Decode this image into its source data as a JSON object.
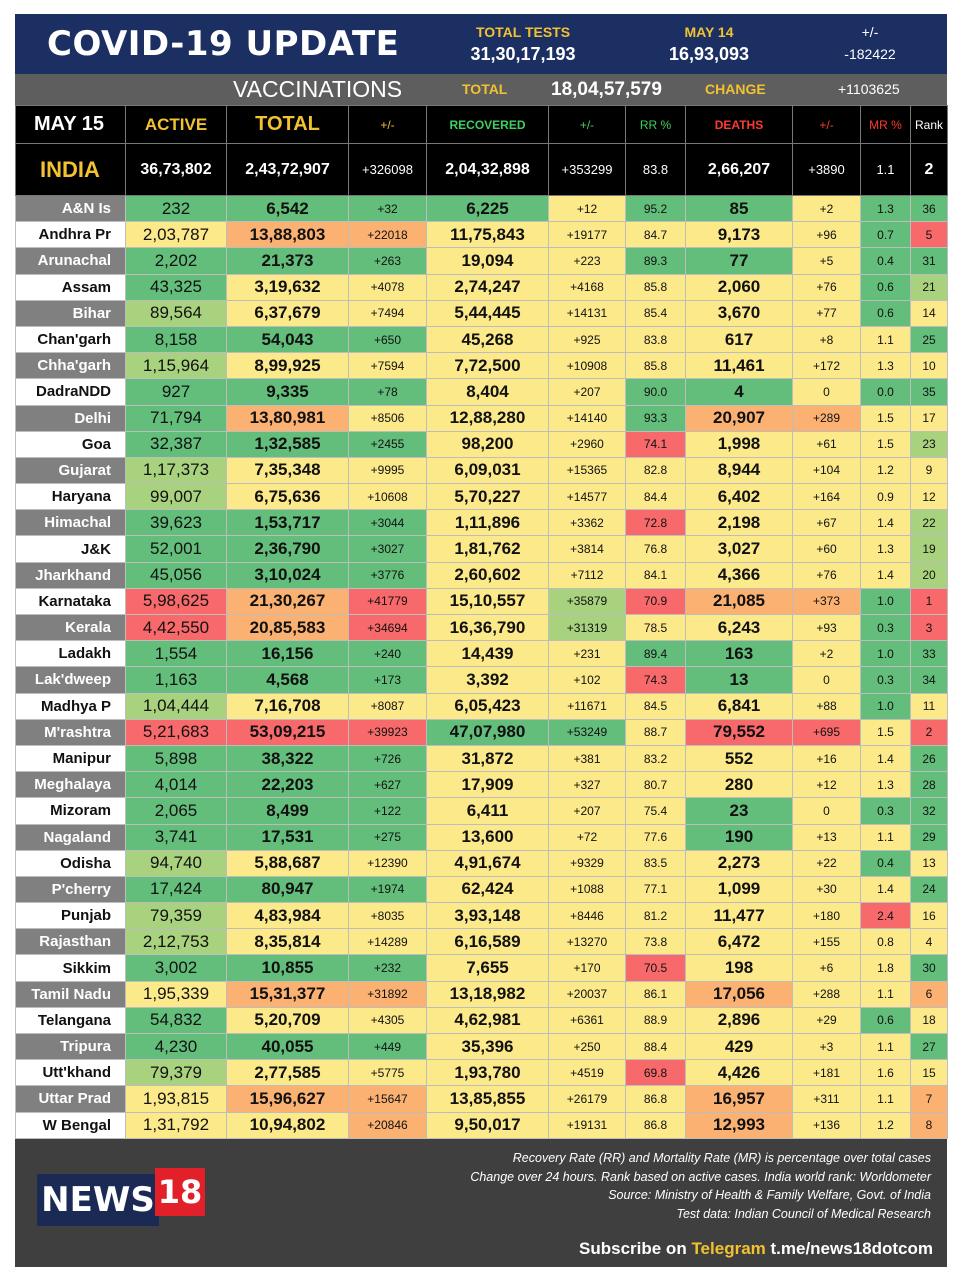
{
  "header": {
    "title": "COVID-19 UPDATE",
    "total_tests_label": "TOTAL TESTS",
    "total_tests_value": "31,30,17,193",
    "may14_label": "MAY 14",
    "may14_value": "16,93,093",
    "change_label": "+/-",
    "change_value": "-182422"
  },
  "vaccinations": {
    "title": "VACCINATIONS",
    "total_label": "TOTAL",
    "total_value": "18,04,57,579",
    "change_label": "CHANGE",
    "change_value": "+1103625"
  },
  "columns": {
    "date": "MAY 15",
    "active": "ACTIVE",
    "total": "TOTAL",
    "total_change": "+/-",
    "recovered": "RECOVERED",
    "recovered_change": "+/-",
    "rr": "RR %",
    "deaths": "DEATHS",
    "deaths_change": "+/-",
    "mr": "MR %",
    "rank": "Rank"
  },
  "india": {
    "name": "INDIA",
    "active": "36,73,802",
    "total": "2,43,72,907",
    "total_change": "+326098",
    "recovered": "2,04,32,898",
    "recovered_change": "+353299",
    "rr": "83.8",
    "deaths": "2,66,207",
    "deaths_change": "+3890",
    "mr": "1.1",
    "rank": "2"
  },
  "colors": {
    "green": "#63be7b",
    "light_green": "#a9d27f",
    "yellow": "#fce98a",
    "orange": "#fbb172",
    "red": "#f8696b",
    "header_navy": "#1c2f63",
    "accent_yellow": "#f2c230"
  },
  "states": [
    [
      "A&N Is",
      "232",
      "6,542",
      "+32",
      "6,225",
      "+12",
      "95.2",
      "85",
      "+2",
      "1.3",
      "36"
    ],
    [
      "Andhra Pr",
      "2,03,787",
      "13,88,803",
      "+22018",
      "11,75,843",
      "+19177",
      "84.7",
      "9,173",
      "+96",
      "0.7",
      "5"
    ],
    [
      "Arunachal",
      "2,202",
      "21,373",
      "+263",
      "19,094",
      "+223",
      "89.3",
      "77",
      "+5",
      "0.4",
      "31"
    ],
    [
      "Assam",
      "43,325",
      "3,19,632",
      "+4078",
      "2,74,247",
      "+4168",
      "85.8",
      "2,060",
      "+76",
      "0.6",
      "21"
    ],
    [
      "Bihar",
      "89,564",
      "6,37,679",
      "+7494",
      "5,44,445",
      "+14131",
      "85.4",
      "3,670",
      "+77",
      "0.6",
      "14"
    ],
    [
      "Chan'garh",
      "8,158",
      "54,043",
      "+650",
      "45,268",
      "+925",
      "83.8",
      "617",
      "+8",
      "1.1",
      "25"
    ],
    [
      "Chha'garh",
      "1,15,964",
      "8,99,925",
      "+7594",
      "7,72,500",
      "+10908",
      "85.8",
      "11,461",
      "+172",
      "1.3",
      "10"
    ],
    [
      "DadraNDD",
      "927",
      "9,335",
      "+78",
      "8,404",
      "+207",
      "90.0",
      "4",
      "0",
      "0.0",
      "35"
    ],
    [
      "Delhi",
      "71,794",
      "13,80,981",
      "+8506",
      "12,88,280",
      "+14140",
      "93.3",
      "20,907",
      "+289",
      "1.5",
      "17"
    ],
    [
      "Goa",
      "32,387",
      "1,32,585",
      "+2455",
      "98,200",
      "+2960",
      "74.1",
      "1,998",
      "+61",
      "1.5",
      "23"
    ],
    [
      "Gujarat",
      "1,17,373",
      "7,35,348",
      "+9995",
      "6,09,031",
      "+15365",
      "82.8",
      "8,944",
      "+104",
      "1.2",
      "9"
    ],
    [
      "Haryana",
      "99,007",
      "6,75,636",
      "+10608",
      "5,70,227",
      "+14577",
      "84.4",
      "6,402",
      "+164",
      "0.9",
      "12"
    ],
    [
      "Himachal",
      "39,623",
      "1,53,717",
      "+3044",
      "1,11,896",
      "+3362",
      "72.8",
      "2,198",
      "+67",
      "1.4",
      "22"
    ],
    [
      "J&K",
      "52,001",
      "2,36,790",
      "+3027",
      "1,81,762",
      "+3814",
      "76.8",
      "3,027",
      "+60",
      "1.3",
      "19"
    ],
    [
      "Jharkhand",
      "45,056",
      "3,10,024",
      "+3776",
      "2,60,602",
      "+7112",
      "84.1",
      "4,366",
      "+76",
      "1.4",
      "20"
    ],
    [
      "Karnataka",
      "5,98,625",
      "21,30,267",
      "+41779",
      "15,10,557",
      "+35879",
      "70.9",
      "21,085",
      "+373",
      "1.0",
      "1"
    ],
    [
      "Kerala",
      "4,42,550",
      "20,85,583",
      "+34694",
      "16,36,790",
      "+31319",
      "78.5",
      "6,243",
      "+93",
      "0.3",
      "3"
    ],
    [
      "Ladakh",
      "1,554",
      "16,156",
      "+240",
      "14,439",
      "+231",
      "89.4",
      "163",
      "+2",
      "1.0",
      "33"
    ],
    [
      "Lak'dweep",
      "1,163",
      "4,568",
      "+173",
      "3,392",
      "+102",
      "74.3",
      "13",
      "0",
      "0.3",
      "34"
    ],
    [
      "Madhya P",
      "1,04,444",
      "7,16,708",
      "+8087",
      "6,05,423",
      "+11671",
      "84.5",
      "6,841",
      "+88",
      "1.0",
      "11"
    ],
    [
      "M'rashtra",
      "5,21,683",
      "53,09,215",
      "+39923",
      "47,07,980",
      "+53249",
      "88.7",
      "79,552",
      "+695",
      "1.5",
      "2"
    ],
    [
      "Manipur",
      "5,898",
      "38,322",
      "+726",
      "31,872",
      "+381",
      "83.2",
      "552",
      "+16",
      "1.4",
      "26"
    ],
    [
      "Meghalaya",
      "4,014",
      "22,203",
      "+627",
      "17,909",
      "+327",
      "80.7",
      "280",
      "+12",
      "1.3",
      "28"
    ],
    [
      "Mizoram",
      "2,065",
      "8,499",
      "+122",
      "6,411",
      "+207",
      "75.4",
      "23",
      "0",
      "0.3",
      "32"
    ],
    [
      "Nagaland",
      "3,741",
      "17,531",
      "+275",
      "13,600",
      "+72",
      "77.6",
      "190",
      "+13",
      "1.1",
      "29"
    ],
    [
      "Odisha",
      "94,740",
      "5,88,687",
      "+12390",
      "4,91,674",
      "+9329",
      "83.5",
      "2,273",
      "+22",
      "0.4",
      "13"
    ],
    [
      "P'cherry",
      "17,424",
      "80,947",
      "+1974",
      "62,424",
      "+1088",
      "77.1",
      "1,099",
      "+30",
      "1.4",
      "24"
    ],
    [
      "Punjab",
      "79,359",
      "4,83,984",
      "+8035",
      "3,93,148",
      "+8446",
      "81.2",
      "11,477",
      "+180",
      "2.4",
      "16"
    ],
    [
      "Rajasthan",
      "2,12,753",
      "8,35,814",
      "+14289",
      "6,16,589",
      "+13270",
      "73.8",
      "6,472",
      "+155",
      "0.8",
      "4"
    ],
    [
      "Sikkim",
      "3,002",
      "10,855",
      "+232",
      "7,655",
      "+170",
      "70.5",
      "198",
      "+6",
      "1.8",
      "30"
    ],
    [
      "Tamil Nadu",
      "1,95,339",
      "15,31,377",
      "+31892",
      "13,18,982",
      "+20037",
      "86.1",
      "17,056",
      "+288",
      "1.1",
      "6"
    ],
    [
      "Telangana",
      "54,832",
      "5,20,709",
      "+4305",
      "4,62,981",
      "+6361",
      "88.9",
      "2,896",
      "+29",
      "0.6",
      "18"
    ],
    [
      "Tripura",
      "4,230",
      "40,055",
      "+449",
      "35,396",
      "+250",
      "88.4",
      "429",
      "+3",
      "1.1",
      "27"
    ],
    [
      "Utt'khand",
      "79,379",
      "2,77,585",
      "+5775",
      "1,93,780",
      "+4519",
      "69.8",
      "4,426",
      "+181",
      "1.6",
      "15"
    ],
    [
      "Uttar Prad",
      "1,93,815",
      "15,96,627",
      "+15647",
      "13,85,855",
      "+26179",
      "86.8",
      "16,957",
      "+311",
      "1.1",
      "7"
    ],
    [
      "W Bengal",
      "1,31,792",
      "10,94,802",
      "+20846",
      "9,50,017",
      "+19131",
      "86.8",
      "12,993",
      "+136",
      "1.2",
      "8"
    ]
  ],
  "shades": [
    [
      "g",
      "g",
      "g",
      "g",
      "y",
      "g",
      "g",
      "y",
      "g",
      "g"
    ],
    [
      "y",
      "o",
      "o",
      "y",
      "y",
      "y",
      "y",
      "y",
      "g",
      "r"
    ],
    [
      "g",
      "g",
      "g",
      "y",
      "y",
      "g",
      "g",
      "y",
      "g",
      "g"
    ],
    [
      "g",
      "y",
      "y",
      "y",
      "y",
      "y",
      "y",
      "y",
      "g",
      "l"
    ],
    [
      "l",
      "y",
      "y",
      "y",
      "y",
      "y",
      "y",
      "y",
      "g",
      "y"
    ],
    [
      "g",
      "g",
      "g",
      "y",
      "y",
      "y",
      "y",
      "y",
      "y",
      "g"
    ],
    [
      "l",
      "y",
      "y",
      "y",
      "y",
      "y",
      "y",
      "y",
      "y",
      "y"
    ],
    [
      "g",
      "g",
      "g",
      "y",
      "y",
      "g",
      "g",
      "y",
      "g",
      "g"
    ],
    [
      "g",
      "o",
      "y",
      "y",
      "y",
      "g",
      "o",
      "o",
      "y",
      "y"
    ],
    [
      "g",
      "g",
      "g",
      "y",
      "y",
      "r",
      "y",
      "y",
      "y",
      "l"
    ],
    [
      "l",
      "y",
      "y",
      "y",
      "y",
      "y",
      "y",
      "y",
      "y",
      "y"
    ],
    [
      "l",
      "y",
      "y",
      "y",
      "y",
      "y",
      "y",
      "y",
      "y",
      "y"
    ],
    [
      "g",
      "g",
      "g",
      "y",
      "y",
      "r",
      "y",
      "y",
      "y",
      "l"
    ],
    [
      "g",
      "g",
      "g",
      "y",
      "y",
      "y",
      "y",
      "y",
      "y",
      "l"
    ],
    [
      "g",
      "g",
      "g",
      "y",
      "y",
      "y",
      "y",
      "y",
      "y",
      "l"
    ],
    [
      "r",
      "o",
      "r",
      "y",
      "l",
      "r",
      "o",
      "o",
      "g",
      "r"
    ],
    [
      "r",
      "o",
      "r",
      "y",
      "l",
      "y",
      "y",
      "y",
      "g",
      "r"
    ],
    [
      "g",
      "g",
      "g",
      "y",
      "y",
      "g",
      "g",
      "y",
      "g",
      "g"
    ],
    [
      "g",
      "g",
      "g",
      "y",
      "y",
      "r",
      "g",
      "y",
      "g",
      "g"
    ],
    [
      "l",
      "y",
      "y",
      "y",
      "y",
      "y",
      "y",
      "y",
      "g",
      "y"
    ],
    [
      "r",
      "r",
      "r",
      "g",
      "g",
      "y",
      "r",
      "r",
      "y",
      "r"
    ],
    [
      "g",
      "g",
      "g",
      "y",
      "y",
      "y",
      "y",
      "y",
      "y",
      "g"
    ],
    [
      "g",
      "g",
      "g",
      "y",
      "y",
      "y",
      "y",
      "y",
      "y",
      "g"
    ],
    [
      "g",
      "g",
      "g",
      "y",
      "y",
      "y",
      "g",
      "y",
      "g",
      "g"
    ],
    [
      "g",
      "g",
      "g",
      "y",
      "y",
      "y",
      "g",
      "y",
      "y",
      "g"
    ],
    [
      "l",
      "y",
      "y",
      "y",
      "y",
      "y",
      "y",
      "y",
      "g",
      "y"
    ],
    [
      "g",
      "g",
      "g",
      "y",
      "y",
      "y",
      "y",
      "y",
      "y",
      "g"
    ],
    [
      "l",
      "y",
      "y",
      "y",
      "y",
      "y",
      "y",
      "y",
      "r",
      "y"
    ],
    [
      "l",
      "y",
      "y",
      "y",
      "y",
      "y",
      "y",
      "y",
      "y",
      "y"
    ],
    [
      "g",
      "g",
      "g",
      "y",
      "y",
      "r",
      "y",
      "y",
      "y",
      "g"
    ],
    [
      "y",
      "o",
      "o",
      "y",
      "y",
      "y",
      "o",
      "y",
      "y",
      "o"
    ],
    [
      "g",
      "y",
      "y",
      "y",
      "y",
      "y",
      "y",
      "y",
      "g",
      "y"
    ],
    [
      "g",
      "g",
      "g",
      "y",
      "y",
      "y",
      "y",
      "y",
      "y",
      "g"
    ],
    [
      "l",
      "y",
      "y",
      "y",
      "y",
      "r",
      "y",
      "y",
      "y",
      "y"
    ],
    [
      "y",
      "o",
      "o",
      "y",
      "y",
      "y",
      "o",
      "y",
      "y",
      "o"
    ],
    [
      "y",
      "y",
      "o",
      "y",
      "y",
      "y",
      "o",
      "y",
      "y",
      "o"
    ]
  ],
  "footer": {
    "logo_text": "NEWS",
    "logo_number": "18",
    "note1": "Recovery Rate (RR) and Mortality Rate (MR) is percentage over total cases",
    "note2": "Change over 24 hours. Rank based on active cases. India world rank: Worldometer",
    "note3": "Source: Ministry of Health & Family Welfare, Govt. of India",
    "note4": "Test data: Indian Council of Medical Research",
    "subscribe_text": "Subscribe on",
    "telegram_label": "Telegram",
    "telegram_link": "t.me/news18dotcom"
  }
}
